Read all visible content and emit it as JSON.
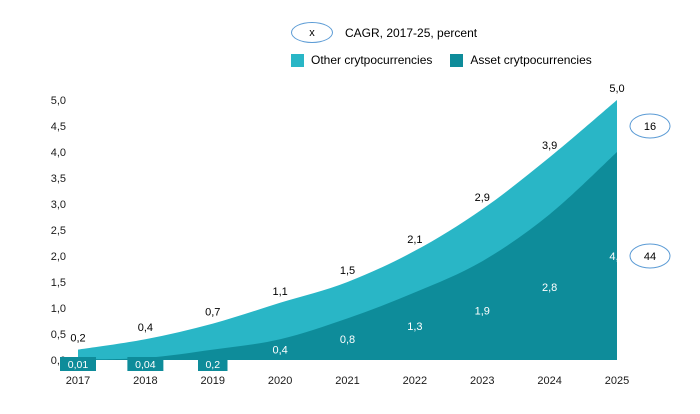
{
  "colors": {
    "other": "#29b6c6",
    "asset": "#0e8c9a",
    "badge_stroke": "#5b9bd5",
    "axis_text": "#1a1a1a",
    "total_label": "#000000",
    "inner_label": "#ffffff"
  },
  "legend": {
    "cagr": {
      "symbol": "x",
      "label": "CAGR, 2017-25, percent"
    },
    "items": [
      {
        "label": "Other crytpocurrencies",
        "color_key": "other"
      },
      {
        "label": "Asset crytpocurrencies",
        "color_key": "asset"
      }
    ]
  },
  "chart_data": {
    "type": "area",
    "stacked": true,
    "grid": false,
    "legend_position": "top",
    "x_labels": [
      "2017",
      "2018",
      "2019",
      "2020",
      "2021",
      "2022",
      "2023",
      "2024",
      "2025"
    ],
    "y_ticks": [
      "0,0",
      "0,5",
      "1,0",
      "1,5",
      "2,0",
      "2,5",
      "3,0",
      "3,5",
      "4,0",
      "4,5",
      "5,0"
    ],
    "ylim": [
      0,
      5
    ],
    "series": [
      {
        "name": "Asset crytpocurrencies",
        "values": [
          0.01,
          0.04,
          0.2,
          0.4,
          0.8,
          1.3,
          1.9,
          2.8,
          4.0
        ],
        "labels": [
          "0,01",
          "0,04",
          "0,2",
          "0,4",
          "0,8",
          "1,3",
          "1,9",
          "2,8",
          "4,0"
        ],
        "cagr": "44"
      },
      {
        "name": "Other crytpocurrencies",
        "values": [
          0.19,
          0.36,
          0.5,
          0.7,
          0.7,
          0.8,
          1.0,
          1.1,
          1.0
        ],
        "cagr": "16"
      }
    ],
    "totals": [
      0.2,
      0.4,
      0.7,
      1.1,
      1.5,
      2.1,
      2.9,
      3.9,
      5.0
    ],
    "total_labels": [
      "0,2",
      "0,4",
      "0,7",
      "1,1",
      "1,5",
      "2,1",
      "2,9",
      "3,9",
      "5,0"
    ],
    "cagr_badges": [
      {
        "value": "16",
        "series": "Other crytpocurrencies"
      },
      {
        "value": "44",
        "series": "Asset crytpocurrencies"
      }
    ]
  }
}
